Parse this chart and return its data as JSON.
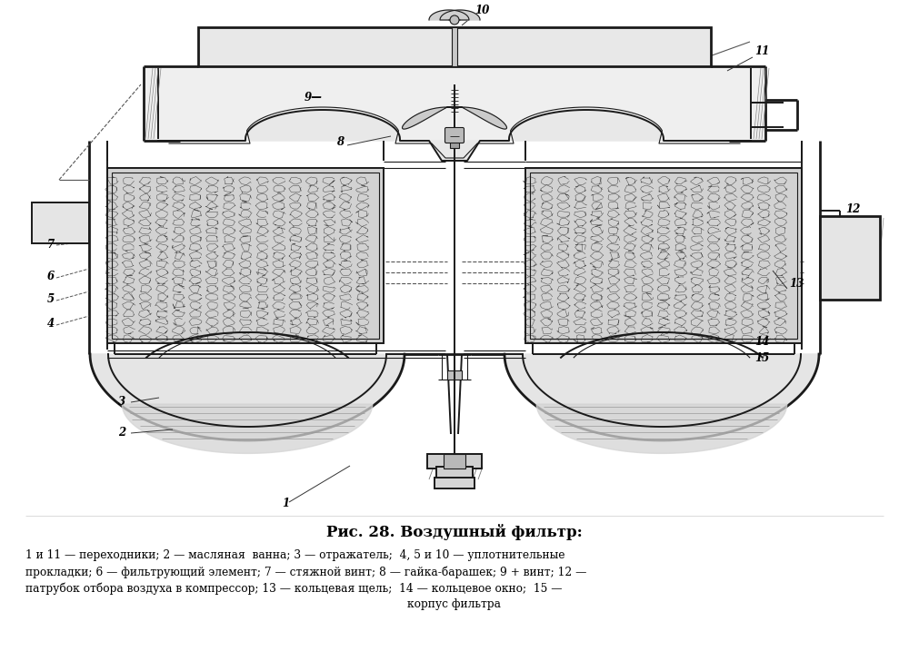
{
  "title": "Рис. 28. Воздушный фильтр:",
  "caption_line1": "1 и 11 — переходники; 2 — масляная  ванна; 3 — отражатель;  4, 5 и 10 — уплотнительные",
  "caption_line2": "прокладки; 6 — фильтрующий элемент; 7 — стяжной винт; 8 — гайка-барашек; 9 + винт; 12 —",
  "caption_line3": "патрубок отбора воздуха в компрессор; 13 — кольцевая щель;  14 — кольцевое окно;  15 —",
  "caption_line4": "корпус фильтра",
  "bg_color": "#ffffff",
  "line_color": "#1a1a1a",
  "fig_width": 10.0,
  "fig_height": 7.28,
  "dpi": 100
}
